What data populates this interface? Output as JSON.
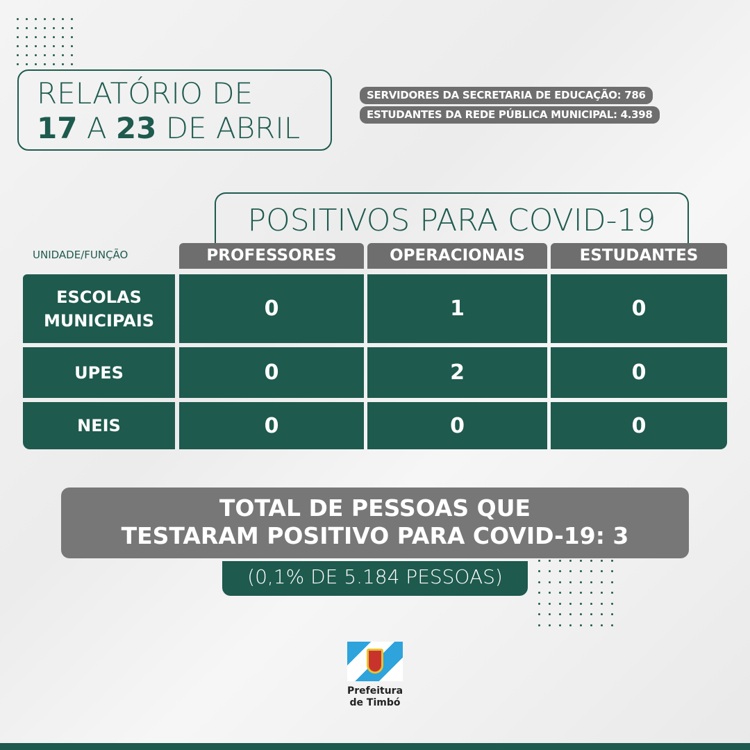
{
  "title": {
    "line1": "RELATÓRIO DE",
    "start_day": "17",
    "connector": "A",
    "end_day": "23",
    "month_text": "DE ABRIL"
  },
  "info": [
    "SERVIDORES DA SECRETARIA DE EDUCAÇÃO: 786",
    "ESTUDANTES DA REDE PÚBLICA MUNICIPAL: 4.398"
  ],
  "table": {
    "heading": "POSITIVOS PARA COVID-19",
    "corner_label": "UNIDADE/FUNÇÃO",
    "columns": [
      "PROFESSORES",
      "OPERACIONAIS",
      "ESTUDANTES"
    ],
    "rows": [
      {
        "label": "ESCOLAS MUNICIPAIS",
        "values": [
          "0",
          "1",
          "0"
        ]
      },
      {
        "label": "UPES",
        "values": [
          "0",
          "2",
          "0"
        ]
      },
      {
        "label": "NEIS",
        "values": [
          "0",
          "0",
          "0"
        ]
      }
    ]
  },
  "total": {
    "line1": "TOTAL DE PESSOAS QUE",
    "line2": "TESTARAM POSITIVO PARA COVID-19: 3",
    "sub": "(0,1% DE 5.184 PESSOAS)"
  },
  "logo": {
    "line1": "Prefeitura",
    "line2": "de Timbó"
  },
  "colors": {
    "green": "#1e5a4e",
    "gray": "#6e6e6e"
  }
}
